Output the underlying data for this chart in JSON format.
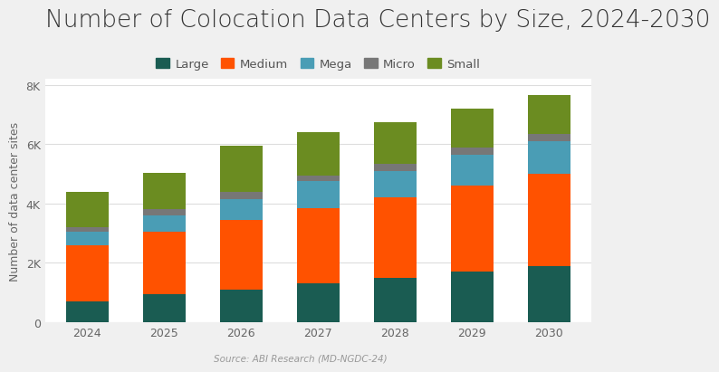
{
  "title": "Number of Colocation Data Centers by Size, 2024-2030",
  "years": [
    2024,
    2025,
    2026,
    2027,
    2028,
    2029,
    2030
  ],
  "categories": [
    "Large",
    "Medium",
    "Mega",
    "Micro",
    "Small"
  ],
  "colors": {
    "Large": "#1a5c52",
    "Medium": "#ff5200",
    "Mega": "#4a9db5",
    "Micro": "#777777",
    "Small": "#6b8c21"
  },
  "data": {
    "Large": [
      700,
      950,
      1100,
      1300,
      1500,
      1700,
      1900
    ],
    "Medium": [
      1900,
      2100,
      2350,
      2550,
      2700,
      2900,
      3100
    ],
    "Mega": [
      450,
      550,
      700,
      900,
      900,
      1050,
      1100
    ],
    "Micro": [
      150,
      200,
      250,
      200,
      250,
      250,
      250
    ],
    "Small": [
      1200,
      1250,
      1550,
      1450,
      1400,
      1300,
      1300
    ]
  },
  "ylabel": "Number of data center sites",
  "source": "Source: ABI Research (MD-NGDC-24)",
  "ylim": [
    0,
    8200
  ],
  "yticks": [
    0,
    2000,
    4000,
    6000,
    8000
  ],
  "ytick_labels": [
    "0",
    "2K",
    "4K",
    "6K",
    "8K"
  ],
  "background_color": "#f0f0f0",
  "plot_bg_color": "#ffffff",
  "grid_color": "#dddddd",
  "bar_width": 0.55,
  "title_fontsize": 19,
  "legend_fontsize": 9.5,
  "axis_fontsize": 9,
  "ylabel_fontsize": 9
}
